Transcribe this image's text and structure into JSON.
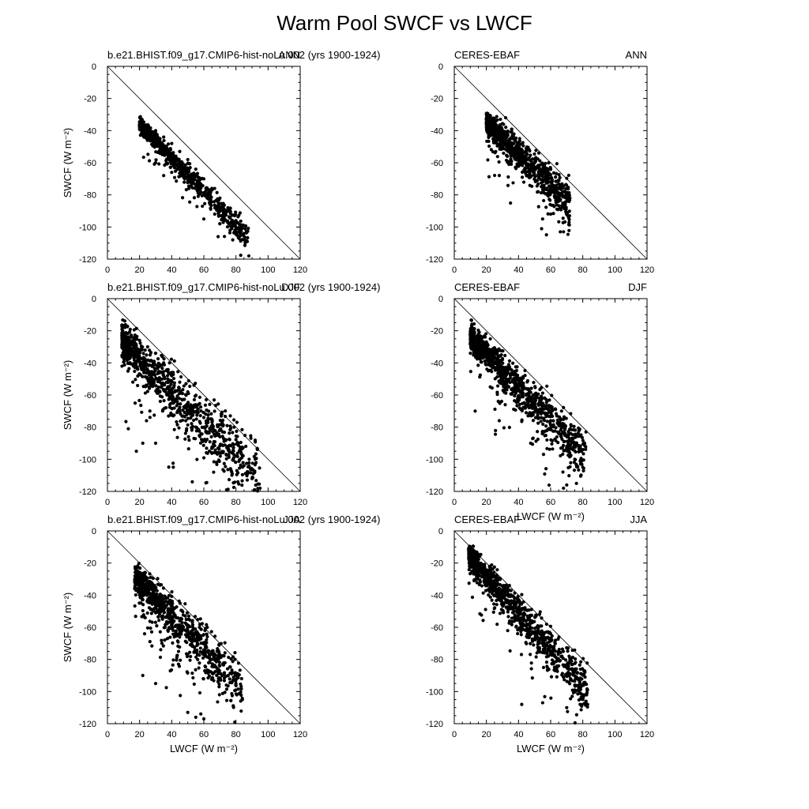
{
  "title": "Warm Pool SWCF vs LWCF",
  "chart_data": [
    {
      "type": "scatter",
      "panel_id": "model-ann",
      "left_title": "b.e21.BHIST.f09_g17.CMIP6-hist-noLu.002 (yrs 1900-1924)",
      "right_title": "ANN",
      "xlabel": "",
      "ylabel": "SWCF (W m⁻²)",
      "xlim": [
        0,
        120
      ],
      "ylim": [
        -120,
        0
      ],
      "xticks": [
        0,
        20,
        40,
        60,
        80,
        100,
        120
      ],
      "yticks": [
        0,
        -20,
        -40,
        -60,
        -80,
        -100,
        -120
      ],
      "reference_line": [
        [
          0,
          0
        ],
        [
          120,
          -120
        ]
      ],
      "cluster": {
        "n": 700,
        "x_range": [
          20,
          88
        ],
        "slope": -1.05,
        "intercept": -15,
        "spread": 5,
        "outliers": 60
      },
      "points": [
        [
          20,
          -36
        ],
        [
          25,
          -37
        ],
        [
          30,
          -40
        ],
        [
          35,
          -44
        ],
        [
          40,
          -48
        ],
        [
          45,
          -53
        ],
        [
          50,
          -58
        ],
        [
          55,
          -64
        ],
        [
          60,
          -70
        ],
        [
          65,
          -76
        ],
        [
          70,
          -82
        ],
        [
          75,
          -88
        ],
        [
          80,
          -96
        ],
        [
          85,
          -104
        ],
        [
          88,
          -118
        ],
        [
          30,
          -60
        ],
        [
          35,
          -68
        ],
        [
          40,
          -66
        ],
        [
          60,
          -95
        ],
        [
          70,
          -98
        ],
        [
          78,
          -108
        ]
      ]
    },
    {
      "type": "scatter",
      "panel_id": "obs-ann",
      "left_title": "CERES-EBAF",
      "right_title": "ANN",
      "xlabel": "",
      "ylabel": "",
      "xlim": [
        0,
        120
      ],
      "ylim": [
        -120,
        0
      ],
      "xticks": [
        0,
        20,
        40,
        60,
        80,
        100,
        120
      ],
      "yticks": [
        0,
        -20,
        -40,
        -60,
        -80,
        -100,
        -120
      ],
      "reference_line": [
        [
          0,
          0
        ],
        [
          120,
          -120
        ]
      ],
      "cluster": {
        "n": 800,
        "x_range": [
          20,
          72
        ],
        "slope": -0.95,
        "intercept": -16,
        "spread": 8,
        "outliers": 80
      },
      "points": [
        [
          20,
          -35
        ],
        [
          25,
          -37
        ],
        [
          30,
          -40
        ],
        [
          32,
          -32
        ],
        [
          35,
          -45
        ],
        [
          40,
          -50
        ],
        [
          45,
          -55
        ],
        [
          50,
          -60
        ],
        [
          55,
          -66
        ],
        [
          60,
          -72
        ],
        [
          65,
          -76
        ],
        [
          70,
          -80
        ],
        [
          66,
          -103
        ],
        [
          68,
          -103
        ],
        [
          55,
          -95
        ],
        [
          60,
          -92
        ],
        [
          72,
          -82
        ]
      ]
    },
    {
      "type": "scatter",
      "panel_id": "model-djf",
      "left_title": "b.e21.BHIST.f09_g17.CMIP6-hist-noLu.002 (yrs 1900-1924)",
      "right_title": "DJF",
      "xlabel": "",
      "ylabel": "SWCF (W m⁻²)",
      "xlim": [
        0,
        120
      ],
      "ylim": [
        -120,
        0
      ],
      "xticks": [
        0,
        20,
        40,
        60,
        80,
        100,
        120
      ],
      "yticks": [
        0,
        -20,
        -40,
        -60,
        -80,
        -100,
        -120
      ],
      "reference_line": [
        [
          0,
          0
        ],
        [
          120,
          -120
        ]
      ],
      "cluster": {
        "n": 900,
        "x_range": [
          9,
          95
        ],
        "slope": -1.0,
        "intercept": -18,
        "spread": 14,
        "outliers": 50
      },
      "points": [
        [
          9,
          -30
        ],
        [
          10,
          -26
        ],
        [
          12,
          -24
        ],
        [
          15,
          -24
        ],
        [
          20,
          -26
        ],
        [
          25,
          -30
        ],
        [
          30,
          -34
        ],
        [
          35,
          -40
        ],
        [
          40,
          -46
        ],
        [
          45,
          -52
        ],
        [
          50,
          -58
        ],
        [
          55,
          -66
        ],
        [
          60,
          -74
        ],
        [
          65,
          -80
        ],
        [
          70,
          -86
        ],
        [
          75,
          -92
        ],
        [
          80,
          -98
        ],
        [
          85,
          -104
        ],
        [
          90,
          -112
        ],
        [
          95,
          -118
        ],
        [
          13,
          -81
        ],
        [
          18,
          -95
        ],
        [
          22,
          -90
        ],
        [
          30,
          -90
        ]
      ]
    },
    {
      "type": "scatter",
      "panel_id": "obs-djf",
      "left_title": "CERES-EBAF",
      "right_title": "DJF",
      "xlabel": "LWCF (W m⁻²)",
      "ylabel": "",
      "xlim": [
        0,
        120
      ],
      "ylim": [
        -120,
        0
      ],
      "xticks": [
        0,
        20,
        40,
        60,
        80,
        100,
        120
      ],
      "yticks": [
        0,
        -20,
        -40,
        -60,
        -80,
        -100,
        -120
      ],
      "reference_line": [
        [
          0,
          0
        ],
        [
          120,
          -120
        ]
      ],
      "cluster": {
        "n": 900,
        "x_range": [
          10,
          82
        ],
        "slope": -1.05,
        "intercept": -13,
        "spread": 10,
        "outliers": 80
      },
      "points": [
        [
          10,
          -22
        ],
        [
          15,
          -24
        ],
        [
          20,
          -27
        ],
        [
          25,
          -32
        ],
        [
          30,
          -38
        ],
        [
          35,
          -44
        ],
        [
          40,
          -50
        ],
        [
          45,
          -56
        ],
        [
          50,
          -62
        ],
        [
          55,
          -68
        ],
        [
          60,
          -76
        ],
        [
          65,
          -84
        ],
        [
          70,
          -92
        ],
        [
          75,
          -100
        ],
        [
          80,
          -105
        ],
        [
          82,
          -83
        ],
        [
          68,
          -118
        ],
        [
          70,
          -116
        ],
        [
          13,
          -70
        ],
        [
          28,
          -76
        ]
      ]
    },
    {
      "type": "scatter",
      "panel_id": "model-jja",
      "left_title": "b.e21.BHIST.f09_g17.CMIP6-hist-noLu.002 (yrs 1900-1924)",
      "right_title": "JJA",
      "xlabel": "LWCF (W m⁻²)",
      "ylabel": "SWCF (W m⁻²)",
      "xlim": [
        0,
        120
      ],
      "ylim": [
        -120,
        0
      ],
      "xticks": [
        0,
        20,
        40,
        60,
        80,
        100,
        120
      ],
      "yticks": [
        0,
        -20,
        -40,
        -60,
        -80,
        -100,
        -120
      ],
      "reference_line": [
        [
          0,
          0
        ],
        [
          120,
          -120
        ]
      ],
      "cluster": {
        "n": 700,
        "x_range": [
          17,
          84
        ],
        "slope": -1.0,
        "intercept": -12,
        "spread": 10,
        "outliers": 150
      },
      "points": [
        [
          17,
          -36
        ],
        [
          20,
          -40
        ],
        [
          25,
          -44
        ],
        [
          28,
          -33
        ],
        [
          30,
          -42
        ],
        [
          35,
          -45
        ],
        [
          40,
          -50
        ],
        [
          45,
          -56
        ],
        [
          50,
          -62
        ],
        [
          55,
          -68
        ],
        [
          60,
          -75
        ],
        [
          65,
          -80
        ],
        [
          70,
          -84
        ],
        [
          75,
          -90
        ],
        [
          80,
          -95
        ],
        [
          84,
          -105
        ],
        [
          50,
          -113
        ],
        [
          55,
          -116
        ],
        [
          60,
          -117
        ],
        [
          22,
          -90
        ],
        [
          30,
          -95
        ]
      ]
    },
    {
      "type": "scatter",
      "panel_id": "obs-jja",
      "left_title": "CERES-EBAF",
      "right_title": "JJA",
      "xlabel": "LWCF (W m⁻²)",
      "ylabel": "",
      "xlim": [
        0,
        120
      ],
      "ylim": [
        -120,
        0
      ],
      "xticks": [
        0,
        20,
        40,
        60,
        80,
        100,
        120
      ],
      "yticks": [
        0,
        -20,
        -40,
        -60,
        -80,
        -100,
        -120
      ],
      "reference_line": [
        [
          0,
          0
        ],
        [
          120,
          -120
        ]
      ],
      "cluster": {
        "n": 900,
        "x_range": [
          9,
          83
        ],
        "slope": -1.15,
        "intercept": -5,
        "spread": 9,
        "outliers": 60
      },
      "points": [
        [
          9,
          -12
        ],
        [
          12,
          -16
        ],
        [
          15,
          -20
        ],
        [
          20,
          -28
        ],
        [
          25,
          -34
        ],
        [
          30,
          -40
        ],
        [
          35,
          -46
        ],
        [
          40,
          -52
        ],
        [
          45,
          -58
        ],
        [
          50,
          -64
        ],
        [
          55,
          -70
        ],
        [
          60,
          -77
        ],
        [
          65,
          -84
        ],
        [
          70,
          -90
        ],
        [
          75,
          -96
        ],
        [
          80,
          -102
        ],
        [
          83,
          -108
        ],
        [
          42,
          -108
        ],
        [
          55,
          -107
        ],
        [
          70,
          -110
        ]
      ]
    }
  ]
}
